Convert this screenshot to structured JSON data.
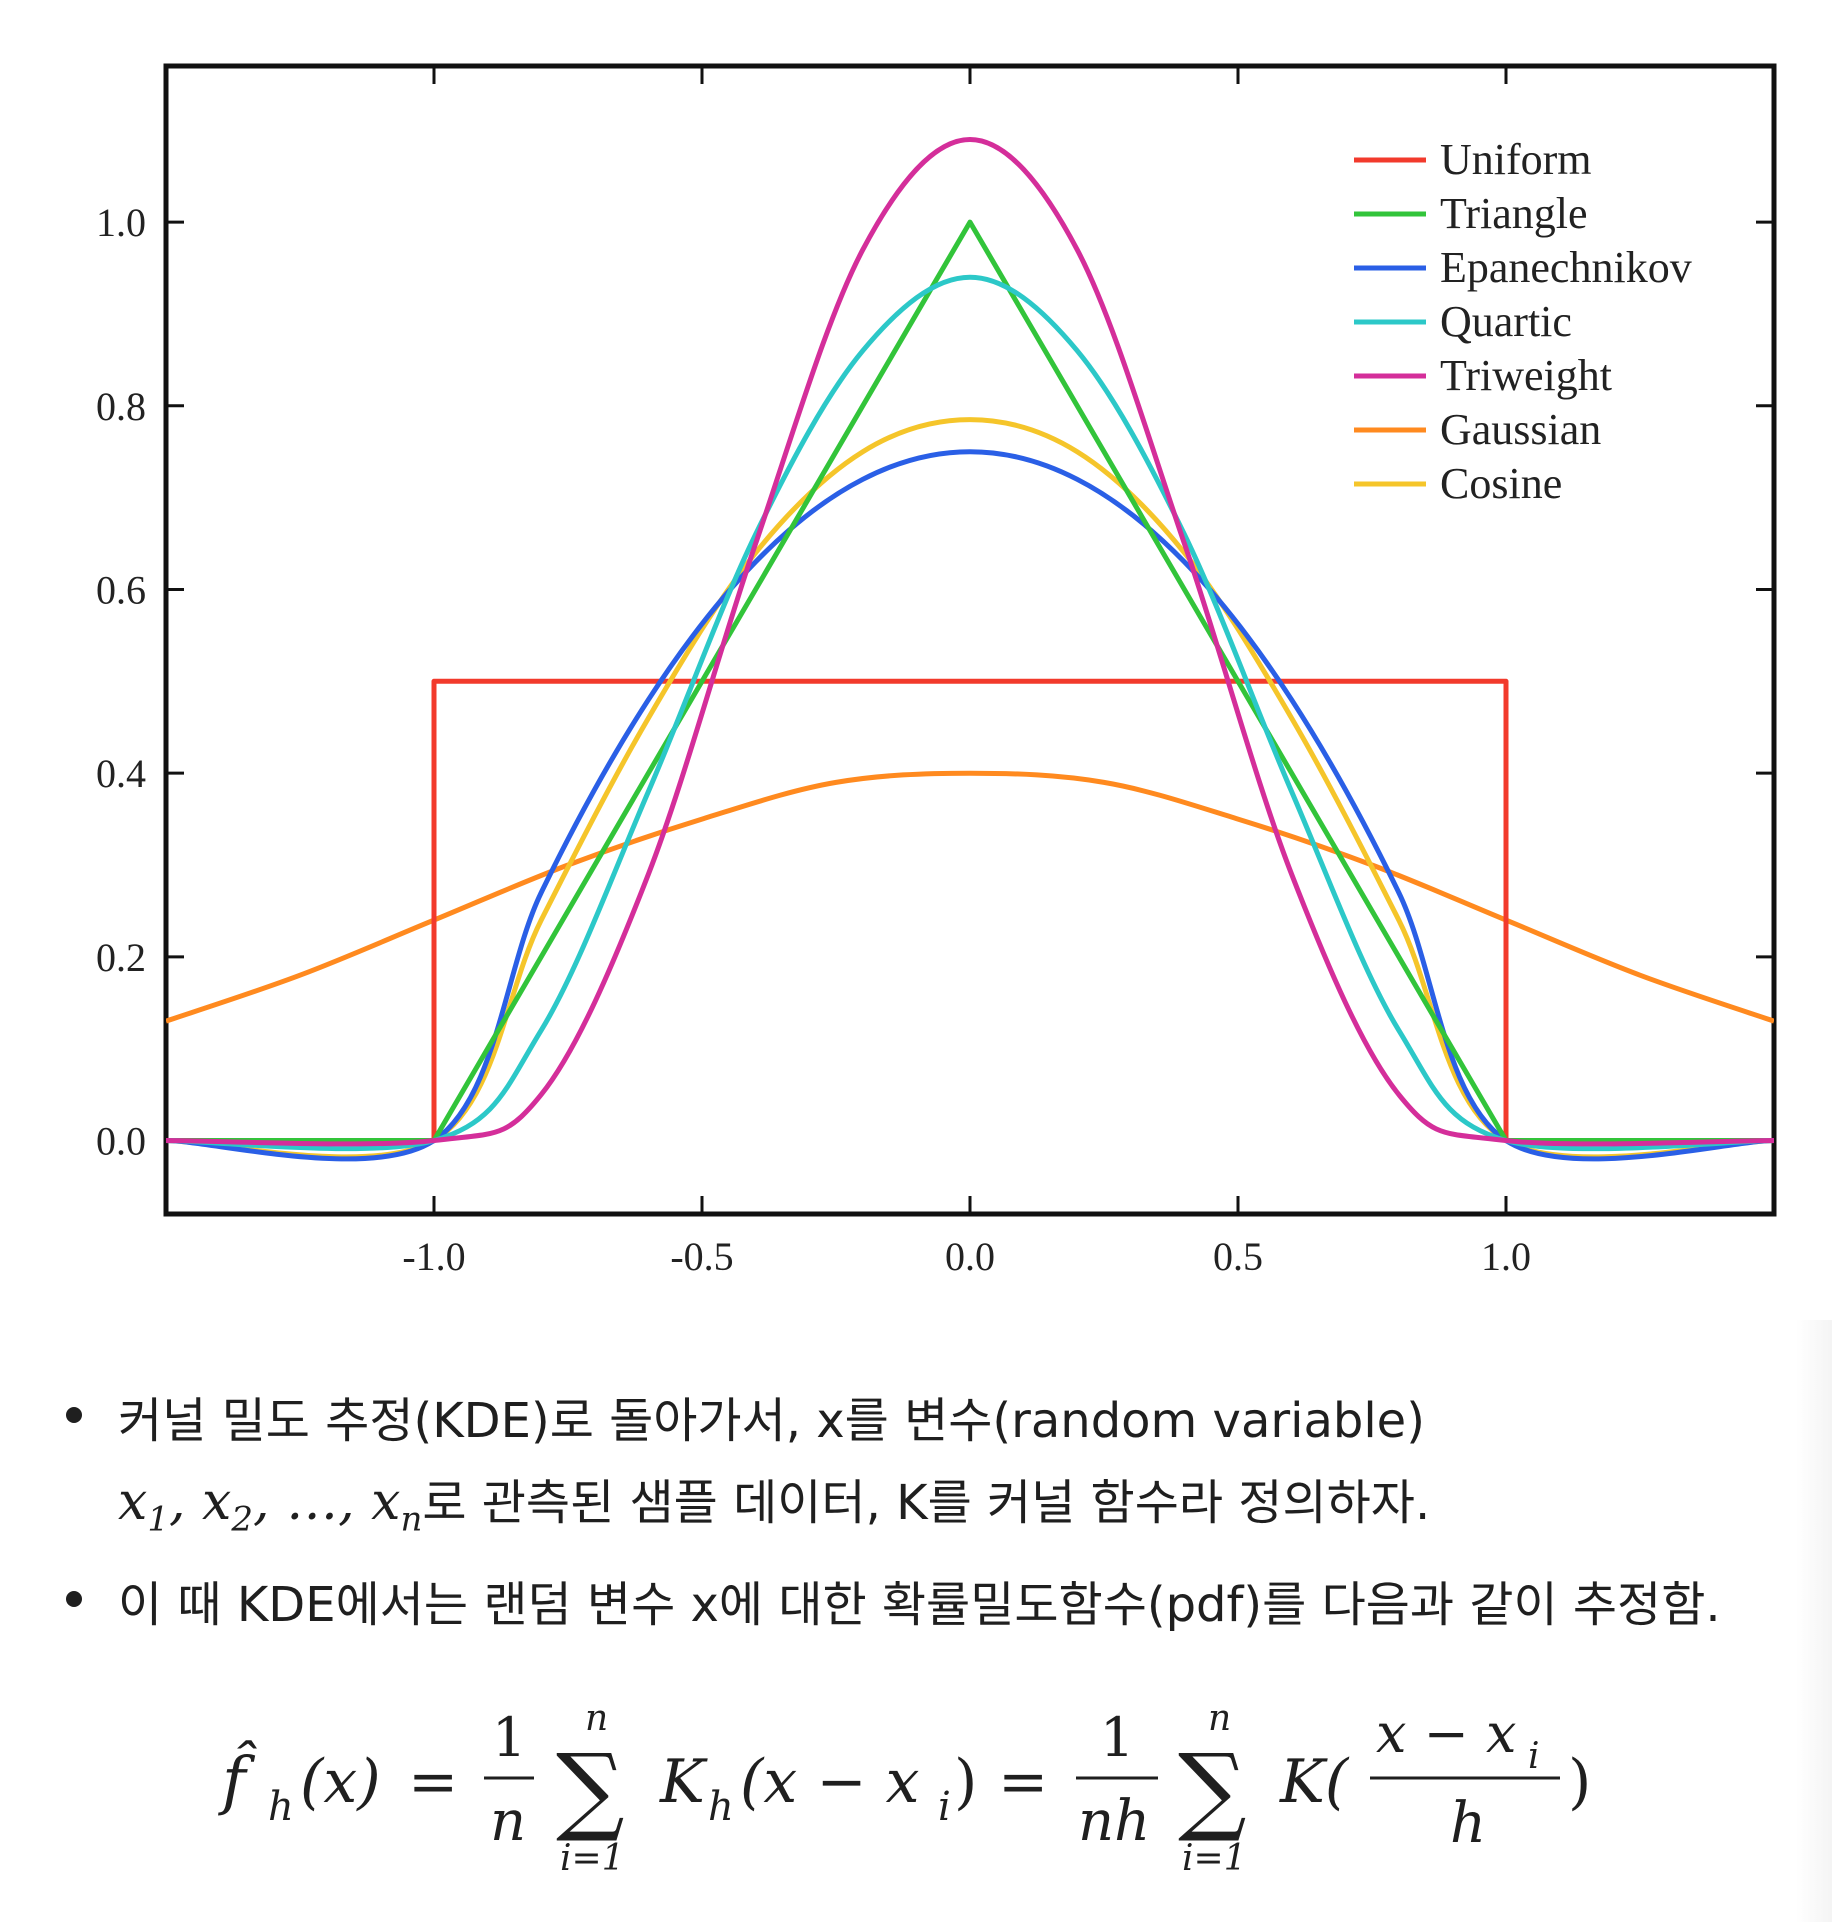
{
  "chart_data": {
    "type": "line",
    "xlim": [
      -1.5,
      1.5
    ],
    "ylim": [
      -0.08,
      1.17
    ],
    "x_ticks": [
      "-1.0",
      "-0.5",
      "0.0",
      "0.5",
      "1.0"
    ],
    "y_ticks": [
      "0.0",
      "0.2",
      "0.4",
      "0.6",
      "0.8",
      "1.0"
    ],
    "legend_position": "top-right",
    "grid": false,
    "series": [
      {
        "name": "Uniform",
        "color": "#f23a2c",
        "points": [
          [
            -1.5,
            0
          ],
          [
            -1.0,
            0
          ],
          [
            -1.0,
            0.5
          ],
          [
            1.0,
            0.5
          ],
          [
            1.0,
            0
          ],
          [
            1.5,
            0
          ]
        ]
      },
      {
        "name": "Triangle",
        "color": "#32c43a",
        "points": [
          [
            -1.5,
            0
          ],
          [
            -1.0,
            0
          ],
          [
            0.0,
            1.0
          ],
          [
            1.0,
            0
          ],
          [
            1.5,
            0
          ]
        ]
      },
      {
        "name": "Epanechnikov",
        "color": "#2a5fe6",
        "points": [
          [
            -1.5,
            0
          ],
          [
            -1.0,
            0
          ],
          [
            -0.8,
            0.27
          ],
          [
            -0.6,
            0.48
          ],
          [
            -0.4,
            0.63
          ],
          [
            -0.2,
            0.72
          ],
          [
            0.0,
            0.75
          ],
          [
            0.2,
            0.72
          ],
          [
            0.4,
            0.63
          ],
          [
            0.6,
            0.48
          ],
          [
            0.8,
            0.27
          ],
          [
            1.0,
            0
          ],
          [
            1.5,
            0
          ]
        ]
      },
      {
        "name": "Quartic",
        "color": "#2cc8c8",
        "points": [
          [
            -1.5,
            0
          ],
          [
            -1.0,
            0
          ],
          [
            -0.8,
            0.12
          ],
          [
            -0.6,
            0.38
          ],
          [
            -0.4,
            0.66
          ],
          [
            -0.2,
            0.86
          ],
          [
            0.0,
            0.94
          ],
          [
            0.2,
            0.86
          ],
          [
            0.4,
            0.66
          ],
          [
            0.6,
            0.38
          ],
          [
            0.8,
            0.12
          ],
          [
            1.0,
            0
          ],
          [
            1.5,
            0
          ]
        ]
      },
      {
        "name": "Triweight",
        "color": "#d42e9a",
        "points": [
          [
            -1.5,
            0
          ],
          [
            -1.0,
            0
          ],
          [
            -0.8,
            0.05
          ],
          [
            -0.6,
            0.29
          ],
          [
            -0.4,
            0.65
          ],
          [
            -0.2,
            0.97
          ],
          [
            0.0,
            1.09
          ],
          [
            0.2,
            0.97
          ],
          [
            0.4,
            0.65
          ],
          [
            0.6,
            0.29
          ],
          [
            0.8,
            0.05
          ],
          [
            1.0,
            0
          ],
          [
            1.5,
            0
          ]
        ]
      },
      {
        "name": "Gaussian",
        "color": "#ff8a1f",
        "points": [
          [
            -1.5,
            0.13
          ],
          [
            -1.25,
            0.18
          ],
          [
            -1.0,
            0.24
          ],
          [
            -0.75,
            0.3
          ],
          [
            -0.5,
            0.35
          ],
          [
            -0.25,
            0.39
          ],
          [
            0.0,
            0.4
          ],
          [
            0.25,
            0.39
          ],
          [
            0.5,
            0.35
          ],
          [
            0.75,
            0.3
          ],
          [
            1.0,
            0.24
          ],
          [
            1.25,
            0.18
          ],
          [
            1.5,
            0.13
          ]
        ]
      },
      {
        "name": "Cosine",
        "color": "#f5c52a",
        "points": [
          [
            -1.5,
            0
          ],
          [
            -1.0,
            0
          ],
          [
            -0.8,
            0.24
          ],
          [
            -0.6,
            0.46
          ],
          [
            -0.4,
            0.64
          ],
          [
            -0.2,
            0.75
          ],
          [
            0.0,
            0.785
          ],
          [
            0.2,
            0.75
          ],
          [
            0.4,
            0.64
          ],
          [
            0.6,
            0.46
          ],
          [
            0.8,
            0.24
          ],
          [
            1.0,
            0
          ],
          [
            1.5,
            0
          ]
        ]
      }
    ]
  },
  "text": {
    "bullet1_line1": "커널 밀도 추정(KDE)로 돌아가서, x를 변수(random variable)",
    "bullet1_line2_math": {
      "x": "x",
      "sub1": "1",
      "sub2": "2",
      "subn": "n",
      "sep": ", ",
      "dots": "…"
    },
    "bullet1_line2_suffix": "로 관측된 샘플 데이터, K를 커널 함수라 정의하자.",
    "bullet2": "이 때 KDE에서는 랜덤 변수 x에 대한 확률밀도함수(pdf)를 다음과 같이 추정함."
  },
  "formula": {
    "lhs": "f̂",
    "lhs_sub": "h",
    "lhs_arg": "(x)",
    "eq": "=",
    "one": "1",
    "n": "n",
    "sum": "∑",
    "sum_upper": "n",
    "sum_lower": "i=1",
    "kh": "K",
    "kh_sub": "h",
    "kh_arg": "(x − x",
    "kh_arg_sub": "i",
    "close": ")",
    "nh": "nh",
    "k": "K(",
    "frac_top": "x − x",
    "frac_top_sub": "i",
    "frac_bottom": "h"
  }
}
